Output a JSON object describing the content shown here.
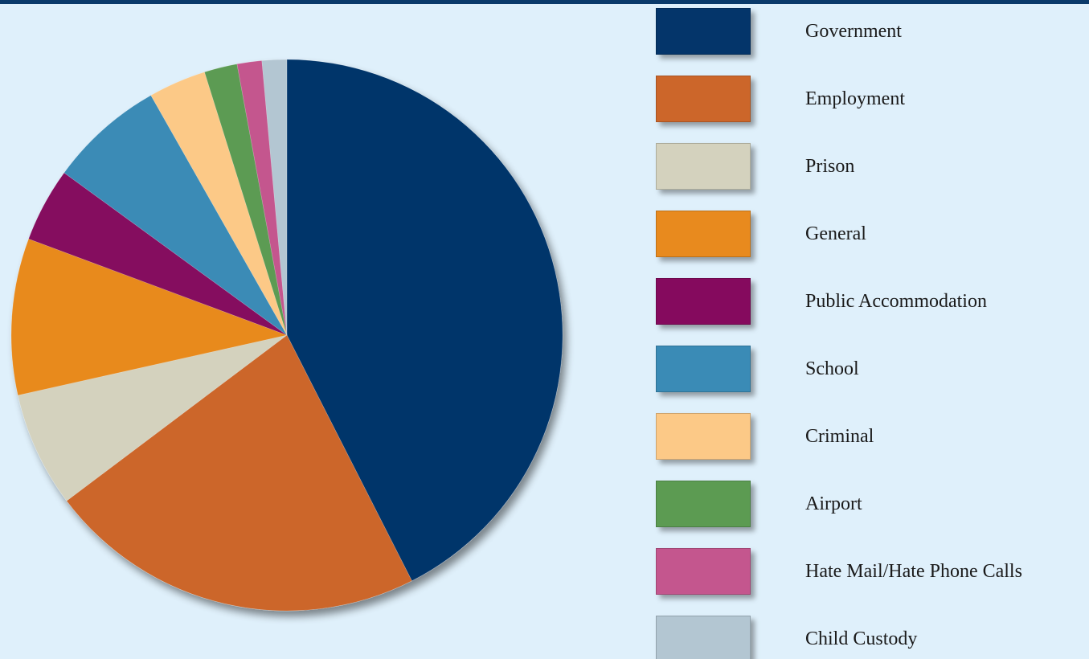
{
  "chart_data": {
    "type": "pie",
    "title": "",
    "legend_placement": "right",
    "series": [
      {
        "label": "Government",
        "value": 44.0,
        "color": "#04356a"
      },
      {
        "label": "Employment",
        "value": 23.0,
        "color": "#cc662a"
      },
      {
        "label": "Prison",
        "value": 7.0,
        "color": "#d4d2be"
      },
      {
        "label": "General",
        "value": 9.5,
        "color": "#e88a1e"
      },
      {
        "label": "Public Accommodation",
        "value": 4.5,
        "color": "#850a5e"
      },
      {
        "label": "School",
        "value": 7.0,
        "color": "#3a8bb6"
      },
      {
        "label": "Criminal",
        "value": 3.5,
        "color": "#fcc987"
      },
      {
        "label": "Airport",
        "value": 2.0,
        "color": "#5c9b52"
      },
      {
        "label": "Hate Mail/Hate Phone Calls",
        "value": 1.5,
        "color": "#c4568e"
      },
      {
        "label": "Child Custody",
        "value": 1.5,
        "color": "#b3c6d2"
      }
    ]
  }
}
